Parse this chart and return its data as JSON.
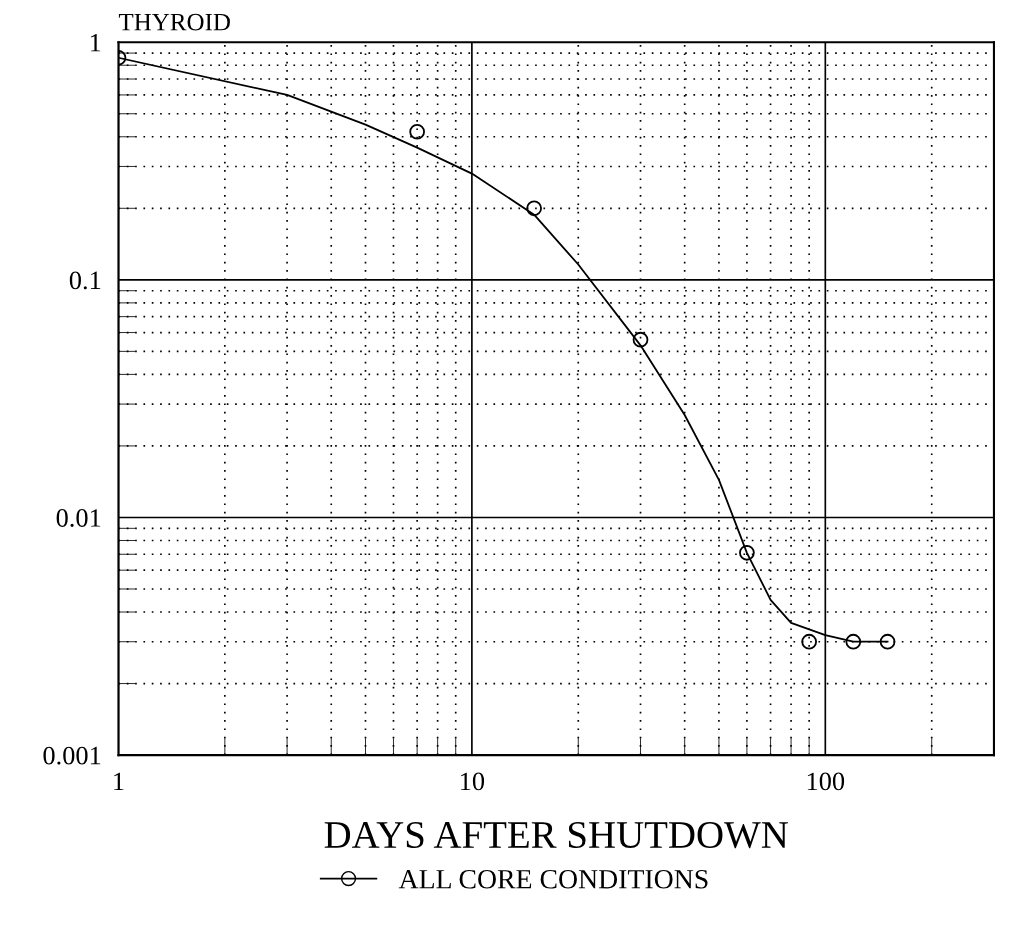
{
  "chart_data": {
    "type": "scatter",
    "title": "THYROID",
    "xlabel": "DAYS AFTER SHUTDOWN",
    "log": "xy",
    "grid": true,
    "legend": "bottom",
    "marker": "circle",
    "xlim": [
      1,
      300
    ],
    "xticks": [
      1,
      10,
      100
    ],
    "ylim": [
      0.001,
      1
    ],
    "yticks": [
      {
        "value": 0.001,
        "label": "0.001"
      },
      {
        "value": 0.01,
        "label": "0.01"
      },
      {
        "value": 0.1,
        "label": "0.1"
      },
      {
        "value": 1,
        "label": "1"
      }
    ],
    "series": [
      {
        "name": "ALL CORE CONDITIONS",
        "color": "#000000",
        "x": [
          1,
          7,
          15,
          30,
          60,
          90,
          120,
          150
        ],
        "values": [
          0.86,
          0.42,
          0.2,
          0.056,
          0.0071,
          0.003,
          0.003,
          0.003
        ]
      },
      {
        "type": "line",
        "color": "#000000",
        "line_style": "solid",
        "marker": "none",
        "x": [
          1,
          3,
          5,
          7,
          10,
          15,
          20,
          30,
          40,
          50,
          60,
          70,
          80,
          100,
          120,
          150
        ],
        "values": [
          0.86,
          0.6,
          0.45,
          0.36,
          0.28,
          0.188,
          0.116,
          0.053,
          0.027,
          0.0144,
          0.0071,
          0.0045,
          0.0036,
          0.0032,
          0.003,
          0.003
        ]
      }
    ]
  }
}
